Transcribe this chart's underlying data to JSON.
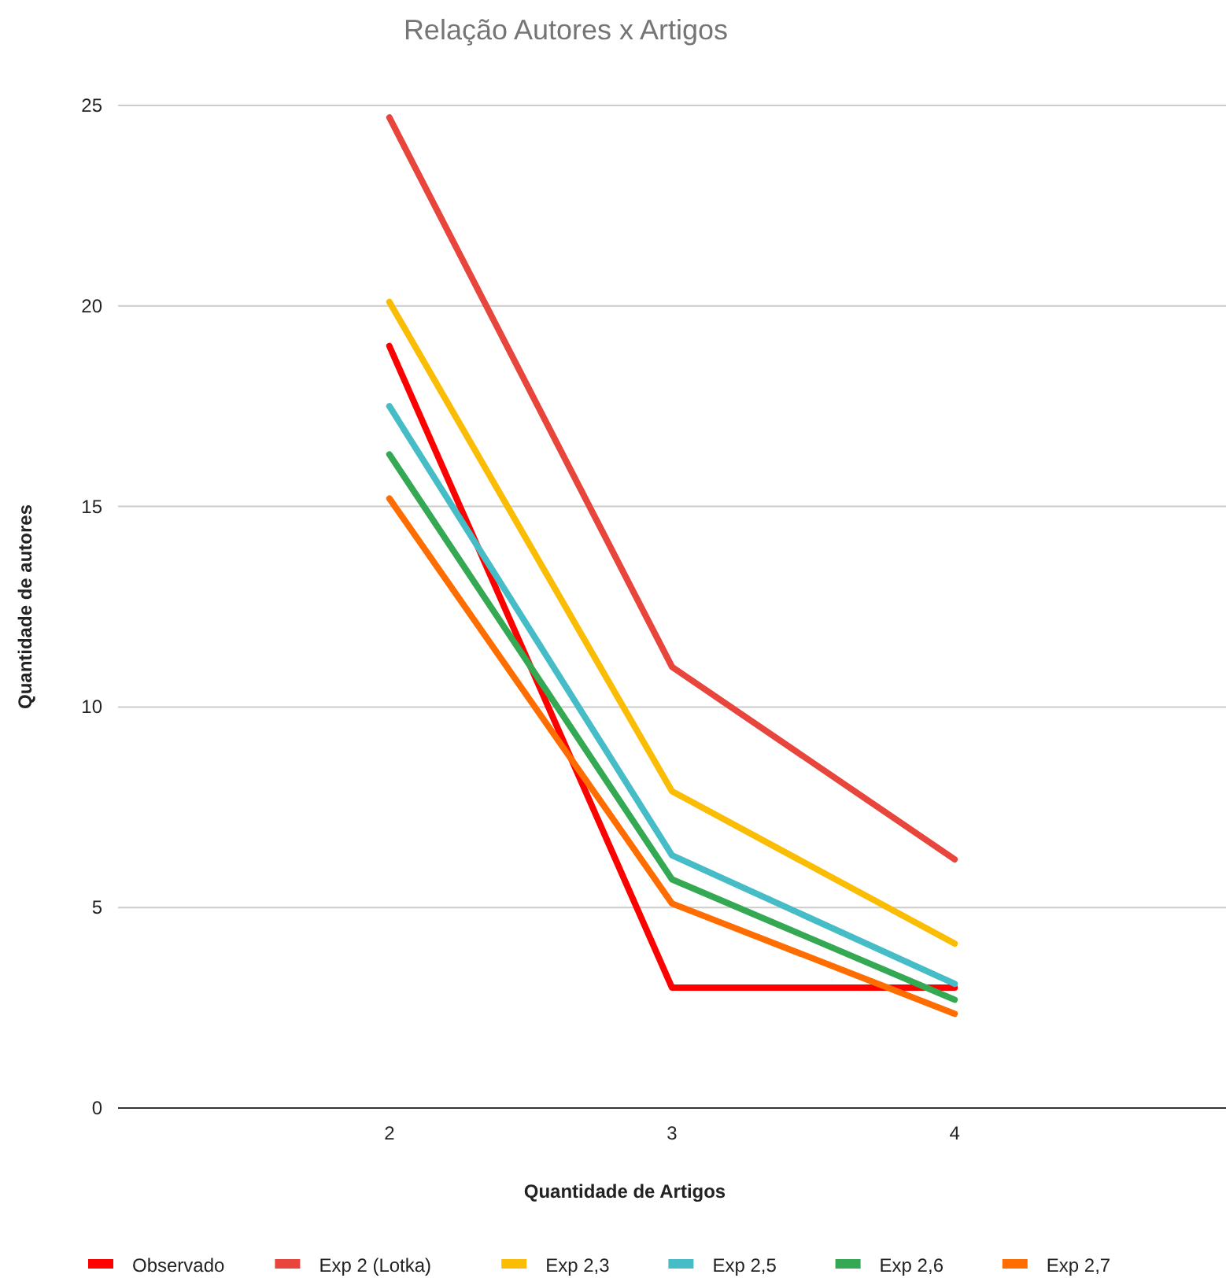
{
  "chart_data": {
    "type": "line",
    "title": "Relação Autores x Artigos",
    "xlabel": "Quantidade de Artigos",
    "ylabel": "Quantidade de autores",
    "categories": [
      "2",
      "3",
      "4"
    ],
    "series": [
      {
        "name": "Observado",
        "color": "#ff0000",
        "values": [
          19,
          3,
          3
        ]
      },
      {
        "name": "Exp 2 (Lotka)",
        "color": "#e8453c",
        "values": [
          24.7,
          11,
          6.2
        ]
      },
      {
        "name": "Exp 2,3",
        "color": "#fbbc04",
        "values": [
          20.1,
          7.9,
          4.1
        ]
      },
      {
        "name": "Exp 2,5",
        "color": "#46bdc6",
        "values": [
          17.5,
          6.3,
          3.1
        ]
      },
      {
        "name": "Exp 2,6",
        "color": "#34a853",
        "values": [
          16.3,
          5.7,
          2.7
        ]
      },
      {
        "name": "Exp 2,7",
        "color": "#ff6d01",
        "values": [
          15.2,
          5.1,
          2.35
        ]
      }
    ],
    "ylim": [
      0,
      25
    ],
    "yticks": [
      0,
      5,
      10,
      15,
      20,
      25
    ],
    "grid": "y",
    "legend": "bottom",
    "marker": "none",
    "line_style": "solid"
  }
}
